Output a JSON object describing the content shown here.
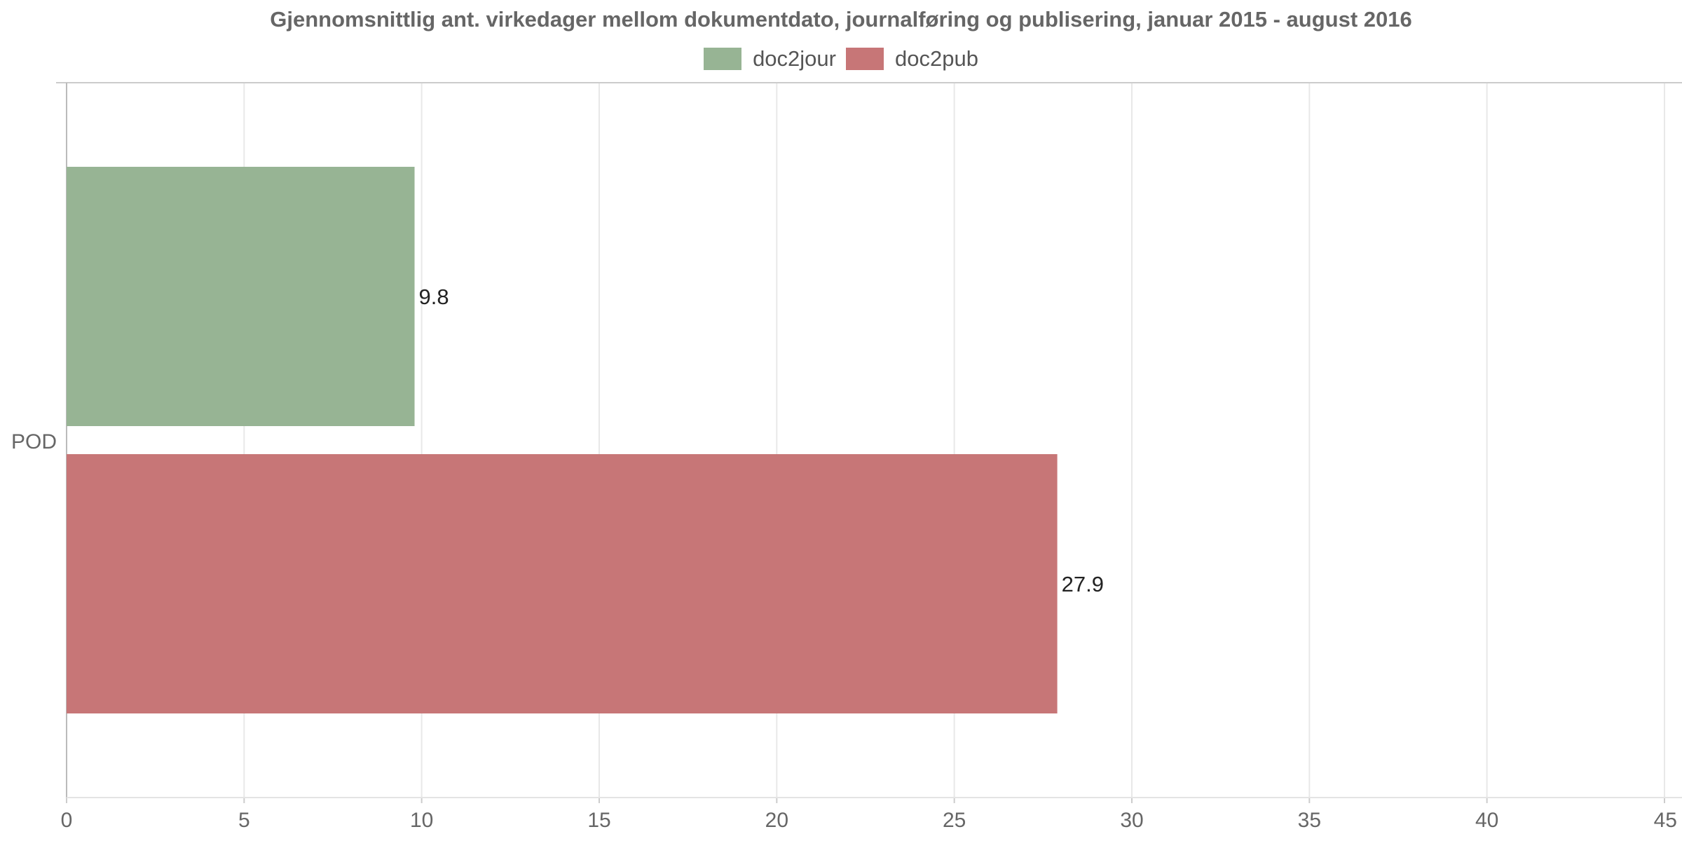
{
  "chart_data": {
    "type": "bar",
    "orientation": "horizontal",
    "title": "Gjennomsnittlig ant. virkedager mellom dokumentdato, journalføring og publisering, januar 2015 - august 2016",
    "categories": [
      "POD"
    ],
    "series": [
      {
        "name": "doc2jour",
        "values": [
          9.8
        ],
        "color": "#97b494"
      },
      {
        "name": "doc2pub",
        "values": [
          27.9
        ],
        "color": "#c77677"
      }
    ],
    "xlim": [
      0,
      45
    ],
    "xticks": [
      0,
      5,
      10,
      15,
      20,
      25,
      30,
      35,
      40,
      45
    ],
    "grid": true,
    "legend_position": "top-center",
    "data_labels": true
  }
}
